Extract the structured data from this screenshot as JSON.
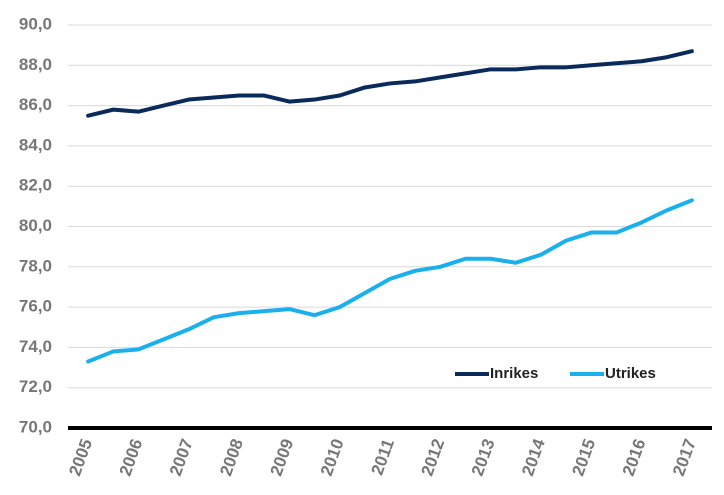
{
  "chart_data": {
    "type": "line",
    "x": [
      2005,
      2005.5,
      2006,
      2006.5,
      2007,
      2007.5,
      2008,
      2008.5,
      2009,
      2009.5,
      2010,
      2010.5,
      2011,
      2011.5,
      2012,
      2012.5,
      2013,
      2013.5,
      2014,
      2014.5,
      2015,
      2015.5,
      2016,
      2016.5,
      2017
    ],
    "series": [
      {
        "name": "Inrikes",
        "color": "#0b2a5c",
        "values": [
          85.5,
          85.8,
          85.7,
          86.0,
          86.3,
          86.4,
          86.5,
          86.5,
          86.2,
          86.3,
          86.5,
          86.9,
          87.1,
          87.2,
          87.4,
          87.6,
          87.8,
          87.8,
          87.9,
          87.9,
          88.0,
          88.1,
          88.2,
          88.4,
          88.7
        ]
      },
      {
        "name": "Utrikes",
        "color": "#1ab0ee",
        "values": [
          73.3,
          73.8,
          73.9,
          74.4,
          74.9,
          75.5,
          75.7,
          75.8,
          75.9,
          75.6,
          76.0,
          76.7,
          77.4,
          77.8,
          78.0,
          78.4,
          78.4,
          78.2,
          78.6,
          79.3,
          79.7,
          79.7,
          80.2,
          80.8,
          81.3
        ]
      }
    ],
    "xlim": [
      2004.6,
      2017.4
    ],
    "xticks": [
      2005,
      2006,
      2007,
      2008,
      2009,
      2010,
      2011,
      2012,
      2013,
      2014,
      2015,
      2016,
      2017
    ],
    "ylim": [
      70,
      90
    ],
    "yticks": [
      {
        "value": 70,
        "label": "70,0"
      },
      {
        "value": 72,
        "label": "72,0"
      },
      {
        "value": 74,
        "label": "74,0"
      },
      {
        "value": 76,
        "label": "76,0"
      },
      {
        "value": 78,
        "label": "78,0"
      },
      {
        "value": 80,
        "label": "80,0"
      },
      {
        "value": 82,
        "label": "82,0"
      },
      {
        "value": 84,
        "label": "84,0"
      },
      {
        "value": 86,
        "label": "86,0"
      },
      {
        "value": 88,
        "label": "88,0"
      },
      {
        "value": 90,
        "label": "90,0"
      }
    ],
    "grid": true,
    "legend": "lower right"
  }
}
